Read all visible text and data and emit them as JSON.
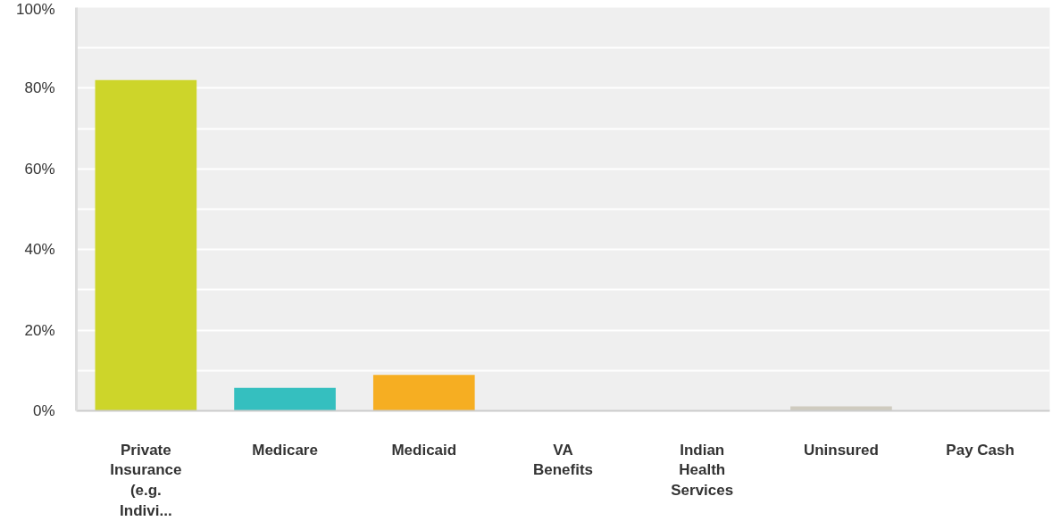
{
  "chart_data": {
    "type": "bar",
    "categories": [
      "Private Insurance (e.g. Indivi...",
      "Medicare",
      "Medicaid",
      "VA Benefits",
      "Indian Health Services",
      "Uninsured",
      "Pay Cash"
    ],
    "values": [
      82,
      5.7,
      8.9,
      0,
      0,
      1.1,
      0
    ],
    "colors": [
      "#cdd52a",
      "#35bfbf",
      "#f6ae22",
      "#8c6bb1",
      "#e05a5a",
      "#cfcbbf",
      "#6b9bd1"
    ],
    "ylim": [
      0,
      100
    ],
    "yticks": [
      {
        "value": 0,
        "label": "0%"
      },
      {
        "value": 10,
        "label": null
      },
      {
        "value": 20,
        "label": "20%"
      },
      {
        "value": 30,
        "label": null
      },
      {
        "value": 40,
        "label": "40%"
      },
      {
        "value": 50,
        "label": null
      },
      {
        "value": 60,
        "label": "60%"
      },
      {
        "value": 70,
        "label": null
      },
      {
        "value": 80,
        "label": "80%"
      },
      {
        "value": 90,
        "label": null
      },
      {
        "value": 100,
        "label": "100%"
      }
    ],
    "grid": "y"
  }
}
